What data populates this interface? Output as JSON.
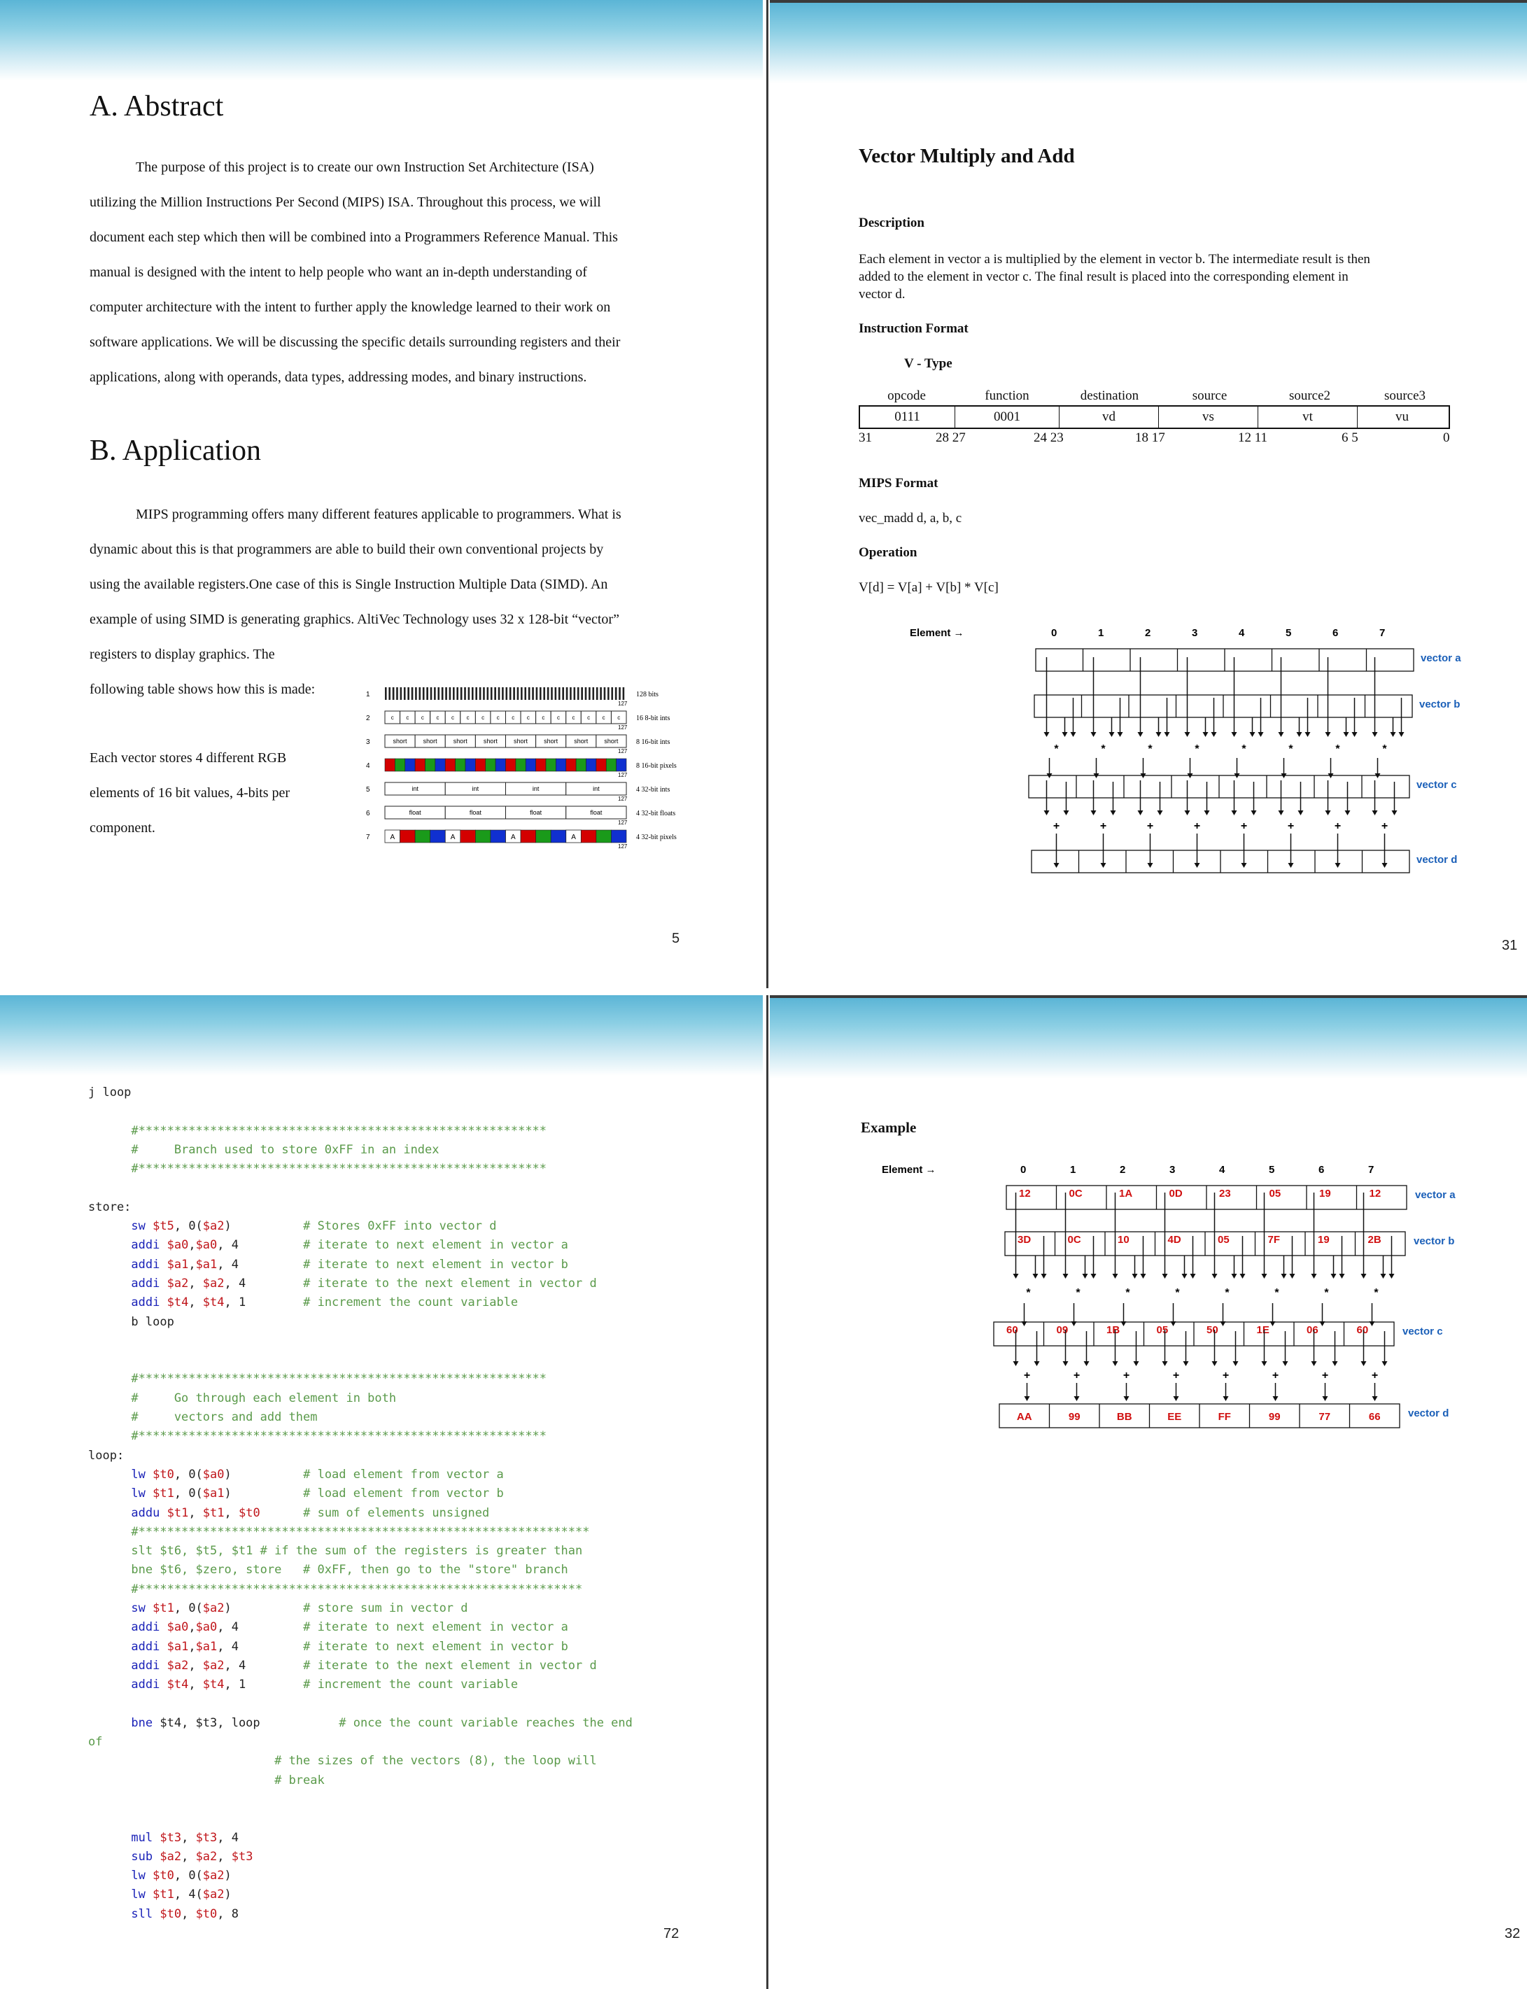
{
  "page1": {
    "heading_a": "A. Abstract",
    "abstract_lines": [
      "The purpose of this project is to create our own Instruction Set Architecture (ISA)",
      "utilizing the Million Instructions Per Second (MIPS) ISA. Throughout this process, we will",
      "document each step which then will be combined into a Programmers Reference Manual. This",
      "manual is designed with the intent to help people who want an in-depth understanding of",
      "computer architecture with the intent to further apply the knowledge learned to their work on",
      "software applications. We will be discussing the specific details surrounding registers and their",
      "applications, along with operands, data types, addressing modes, and binary instructions."
    ],
    "heading_b": "B. Application",
    "application_lines": [
      "MIPS programming offers many different features applicable to programmers. What is",
      "dynamic about this is that programmers are able to build their own conventional projects by",
      "using the available registers.One case of this is Single Instruction Multiple Data (SIMD). An",
      "example of using SIMD is generating graphics. AltiVec Technology uses 32 x 128-bit “vector”",
      "registers to display graphics. The",
      "following table shows how this is made:"
    ],
    "side_lines": [
      "Each vector stores 4 different RGB",
      "elements of 16 bit values, 4-bits per",
      "component."
    ],
    "vector_rows": [
      {
        "n": "1",
        "label": "128 bits",
        "cell": "",
        "count": 128
      },
      {
        "n": "2",
        "label": "16 8-bit ints",
        "cell": "c",
        "count": 16
      },
      {
        "n": "3",
        "label": "8 16-bit ints",
        "cell": "short",
        "count": 8
      },
      {
        "n": "4",
        "label": "8 16-bit pixels",
        "cell": "",
        "count": 8
      },
      {
        "n": "5",
        "label": "4 32-bit ints",
        "cell": "int",
        "count": 4
      },
      {
        "n": "6",
        "label": "4 32-bit floats",
        "cell": "float",
        "count": 4
      },
      {
        "n": "7",
        "label": "4 32-bit pixels",
        "cell": "A",
        "count": 4
      }
    ],
    "bit_label_127": "127",
    "bit_label_0": "0",
    "page_number": "5"
  },
  "page2": {
    "title": "Vector Multiply and Add",
    "description_heading": "Description",
    "description_lines": [
      "Each element in vector a is multiplied by the element in vector b. The intermediate result is then",
      "added to the element in vector c. The final result is placed into the corresponding element in",
      "vector d."
    ],
    "instruction_format_heading": "Instruction Format",
    "format_type": "V - Type",
    "fields": [
      {
        "name": "opcode",
        "value": "0111"
      },
      {
        "name": "function",
        "value": "0001"
      },
      {
        "name": "destination",
        "value": "vd"
      },
      {
        "name": "source",
        "value": "vs"
      },
      {
        "name": "source2",
        "value": "vt"
      },
      {
        "name": "source3",
        "value": "vu"
      }
    ],
    "bit_positions": [
      "31",
      "28 27",
      "24 23",
      "18 17",
      "12 11",
      "6 5",
      "0"
    ],
    "mips_format_heading": "MIPS Format",
    "mips_format": "vec_madd d, a, b, c",
    "operation_heading": "Operation",
    "operation": "V[d] = V[a] + V[b] * V[c]",
    "element_label": "Element →",
    "element_indices": [
      "0",
      "1",
      "2",
      "3",
      "4",
      "5",
      "6",
      "7"
    ],
    "vector_labels": [
      "vector a",
      "vector b",
      "vector c",
      "vector d"
    ],
    "mult_symbol": "*",
    "add_symbol": "+",
    "page_number": "31"
  },
  "page3": {
    "code_lines": [
      [
        {
          "t": "j loop",
          "c": ""
        }
      ],
      [
        {
          "t": "",
          "c": ""
        }
      ],
      [
        {
          "t": "      #*********************************************************",
          "c": "cm"
        }
      ],
      [
        {
          "t": "      #     Branch used to store 0xFF in an index",
          "c": "cm"
        }
      ],
      [
        {
          "t": "      #*********************************************************",
          "c": "cm"
        }
      ],
      [
        {
          "t": "",
          "c": ""
        }
      ],
      [
        {
          "t": "store:",
          "c": ""
        }
      ],
      [
        {
          "t": "      sw ",
          "c": "kw"
        },
        {
          "t": "$t5",
          "c": "rg"
        },
        {
          "t": ", 0(",
          "c": ""
        },
        {
          "t": "$a2",
          "c": "rg"
        },
        {
          "t": ")          ",
          "c": ""
        },
        {
          "t": "# Stores 0xFF into vector d",
          "c": "cm"
        }
      ],
      [
        {
          "t": "      addi ",
          "c": "kw"
        },
        {
          "t": "$a0",
          "c": "rg"
        },
        {
          "t": ",",
          "c": ""
        },
        {
          "t": "$a0",
          "c": "rg"
        },
        {
          "t": ", 4         ",
          "c": ""
        },
        {
          "t": "# iterate to next element in vector a",
          "c": "cm"
        }
      ],
      [
        {
          "t": "      addi ",
          "c": "kw"
        },
        {
          "t": "$a1",
          "c": "rg"
        },
        {
          "t": ",",
          "c": ""
        },
        {
          "t": "$a1",
          "c": "rg"
        },
        {
          "t": ", 4         ",
          "c": ""
        },
        {
          "t": "# iterate to next element in vector b",
          "c": "cm"
        }
      ],
      [
        {
          "t": "      addi ",
          "c": "kw"
        },
        {
          "t": "$a2",
          "c": "rg"
        },
        {
          "t": ", ",
          "c": ""
        },
        {
          "t": "$a2",
          "c": "rg"
        },
        {
          "t": ", 4        ",
          "c": ""
        },
        {
          "t": "# iterate to the next element in vector d",
          "c": "cm"
        }
      ],
      [
        {
          "t": "      addi ",
          "c": "kw"
        },
        {
          "t": "$t4",
          "c": "rg"
        },
        {
          "t": ", ",
          "c": ""
        },
        {
          "t": "$t4",
          "c": "rg"
        },
        {
          "t": ", 1        ",
          "c": ""
        },
        {
          "t": "# increment the count variable",
          "c": "cm"
        }
      ],
      [
        {
          "t": "      b loop",
          "c": ""
        }
      ],
      [
        {
          "t": "",
          "c": ""
        }
      ],
      [
        {
          "t": "",
          "c": ""
        }
      ],
      [
        {
          "t": "      #*********************************************************",
          "c": "cm"
        }
      ],
      [
        {
          "t": "      #     Go through each element in both",
          "c": "cm"
        }
      ],
      [
        {
          "t": "      #     vectors and add them",
          "c": "cm"
        }
      ],
      [
        {
          "t": "      #*********************************************************",
          "c": "cm"
        }
      ],
      [
        {
          "t": "loop:",
          "c": ""
        }
      ],
      [
        {
          "t": "      lw ",
          "c": "kw"
        },
        {
          "t": "$t0",
          "c": "rg"
        },
        {
          "t": ", 0(",
          "c": ""
        },
        {
          "t": "$a0",
          "c": "rg"
        },
        {
          "t": ")          ",
          "c": ""
        },
        {
          "t": "# load element from vector a",
          "c": "cm"
        }
      ],
      [
        {
          "t": "      lw ",
          "c": "kw"
        },
        {
          "t": "$t1",
          "c": "rg"
        },
        {
          "t": ", 0(",
          "c": ""
        },
        {
          "t": "$a1",
          "c": "rg"
        },
        {
          "t": ")          ",
          "c": ""
        },
        {
          "t": "# load element from vector b",
          "c": "cm"
        }
      ],
      [
        {
          "t": "      addu ",
          "c": "kw"
        },
        {
          "t": "$t1",
          "c": "rg"
        },
        {
          "t": ", ",
          "c": ""
        },
        {
          "t": "$t1",
          "c": "rg"
        },
        {
          "t": ", ",
          "c": ""
        },
        {
          "t": "$t0",
          "c": "rg"
        },
        {
          "t": "      ",
          "c": ""
        },
        {
          "t": "# sum of elements unsigned",
          "c": "cm"
        }
      ],
      [
        {
          "t": "      #***************************************************************",
          "c": "cm"
        }
      ],
      [
        {
          "t": "      slt $t6, $t5, $t1 # if the sum of the registers is greater than",
          "c": "cm"
        }
      ],
      [
        {
          "t": "      bne $t6, $zero, store   # 0xFF, then go to the \"store\" branch",
          "c": "cm"
        }
      ],
      [
        {
          "t": "      #**************************************************************",
          "c": "cm"
        }
      ],
      [
        {
          "t": "      sw ",
          "c": "kw"
        },
        {
          "t": "$t1",
          "c": "rg"
        },
        {
          "t": ", 0(",
          "c": ""
        },
        {
          "t": "$a2",
          "c": "rg"
        },
        {
          "t": ")          ",
          "c": ""
        },
        {
          "t": "# store sum in vector d",
          "c": "cm"
        }
      ],
      [
        {
          "t": "      addi ",
          "c": "kw"
        },
        {
          "t": "$a0",
          "c": "rg"
        },
        {
          "t": ",",
          "c": ""
        },
        {
          "t": "$a0",
          "c": "rg"
        },
        {
          "t": ", 4         ",
          "c": ""
        },
        {
          "t": "# iterate to next element in vector a",
          "c": "cm"
        }
      ],
      [
        {
          "t": "      addi ",
          "c": "kw"
        },
        {
          "t": "$a1",
          "c": "rg"
        },
        {
          "t": ",",
          "c": ""
        },
        {
          "t": "$a1",
          "c": "rg"
        },
        {
          "t": ", 4         ",
          "c": ""
        },
        {
          "t": "# iterate to next element in vector b",
          "c": "cm"
        }
      ],
      [
        {
          "t": "      addi ",
          "c": "kw"
        },
        {
          "t": "$a2",
          "c": "rg"
        },
        {
          "t": ", ",
          "c": ""
        },
        {
          "t": "$a2",
          "c": "rg"
        },
        {
          "t": ", 4        ",
          "c": ""
        },
        {
          "t": "# iterate to the next element in vector d",
          "c": "cm"
        }
      ],
      [
        {
          "t": "      addi ",
          "c": "kw"
        },
        {
          "t": "$t4",
          "c": "rg"
        },
        {
          "t": ", ",
          "c": ""
        },
        {
          "t": "$t4",
          "c": "rg"
        },
        {
          "t": ", 1        ",
          "c": ""
        },
        {
          "t": "# increment the count variable",
          "c": "cm"
        }
      ],
      [
        {
          "t": "",
          "c": ""
        }
      ],
      [
        {
          "t": "      bne ",
          "c": "kw"
        },
        {
          "t": "$t4, $t3, loop           ",
          "c": ""
        },
        {
          "t": "# once the count variable reaches the end",
          "c": "cm"
        }
      ],
      [
        {
          "t": "of",
          "c": "cm"
        }
      ],
      [
        {
          "t": "                          # the sizes of the vectors (8), the loop will",
          "c": "cm"
        }
      ],
      [
        {
          "t": "                          # break",
          "c": "cm"
        }
      ],
      [
        {
          "t": "",
          "c": ""
        }
      ],
      [
        {
          "t": "",
          "c": ""
        }
      ],
      [
        {
          "t": "      mul ",
          "c": "kw"
        },
        {
          "t": "$t3",
          "c": "rg"
        },
        {
          "t": ", ",
          "c": ""
        },
        {
          "t": "$t3",
          "c": "rg"
        },
        {
          "t": ", 4",
          "c": ""
        }
      ],
      [
        {
          "t": "      sub ",
          "c": "kw"
        },
        {
          "t": "$a2",
          "c": "rg"
        },
        {
          "t": ", ",
          "c": ""
        },
        {
          "t": "$a2",
          "c": "rg"
        },
        {
          "t": ", ",
          "c": ""
        },
        {
          "t": "$t3",
          "c": "rg"
        }
      ],
      [
        {
          "t": "      lw ",
          "c": "kw"
        },
        {
          "t": "$t0",
          "c": "rg"
        },
        {
          "t": ", 0(",
          "c": ""
        },
        {
          "t": "$a2",
          "c": "rg"
        },
        {
          "t": ")",
          "c": ""
        }
      ],
      [
        {
          "t": "      lw ",
          "c": "kw"
        },
        {
          "t": "$t1",
          "c": "rg"
        },
        {
          "t": ", 4(",
          "c": ""
        },
        {
          "t": "$a2",
          "c": "rg"
        },
        {
          "t": ")",
          "c": ""
        }
      ],
      [
        {
          "t": "      sll ",
          "c": "kw"
        },
        {
          "t": "$t0",
          "c": "rg"
        },
        {
          "t": ", ",
          "c": ""
        },
        {
          "t": "$t0",
          "c": "rg"
        },
        {
          "t": ", 8",
          "c": ""
        }
      ]
    ],
    "page_number": "72"
  },
  "page4": {
    "heading": "Example",
    "element_label": "Element →",
    "element_indices": [
      "0",
      "1",
      "2",
      "3",
      "4",
      "5",
      "6",
      "7"
    ],
    "vector_a": [
      "12",
      "0C",
      "1A",
      "0D",
      "23",
      "05",
      "19",
      "12"
    ],
    "vector_b": [
      "3D",
      "0C",
      "10",
      "4D",
      "05",
      "7F",
      "19",
      "2B"
    ],
    "vector_c": [
      "60",
      "09",
      "1B",
      "05",
      "50",
      "1E",
      "06",
      "60"
    ],
    "vector_d": [
      "AA",
      "99",
      "BB",
      "EE",
      "FF",
      "99",
      "77",
      "66"
    ],
    "vector_labels": [
      "vector a",
      "vector b",
      "vector c",
      "vector d"
    ],
    "mult_symbol": "*",
    "add_symbol": "+",
    "page_number": "32"
  },
  "colors": {
    "banner": "#5bb5d6",
    "keyword": "#1a22b8",
    "register": "#c0161b",
    "comment": "#5a9a4a",
    "vector_label": "#1a5fb8",
    "value_red": "#d01010"
  }
}
